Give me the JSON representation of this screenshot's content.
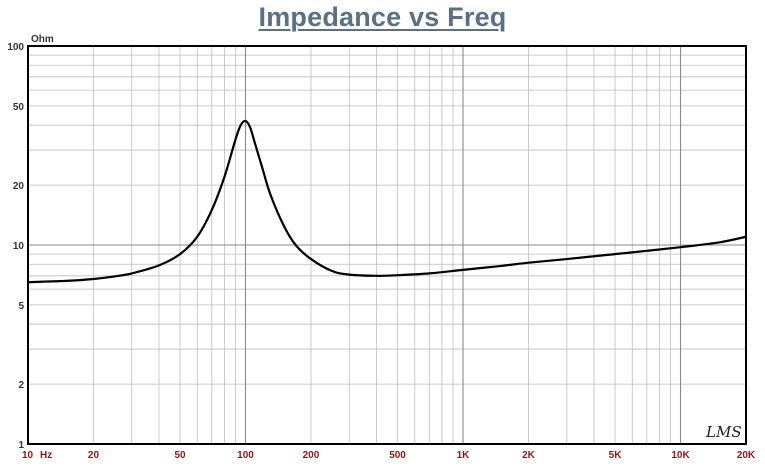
{
  "chart_data": {
    "type": "line",
    "title": "Impedance vs Freq",
    "y_unit": "Ohm",
    "x_unit": "Hz",
    "x_scale": "log",
    "y_scale": "log",
    "xlim": [
      10,
      20000
    ],
    "ylim": [
      1,
      100
    ],
    "grid": true,
    "y_ticks": [
      {
        "value": 100,
        "label": "100"
      },
      {
        "value": 50,
        "label": "50"
      },
      {
        "value": 20,
        "label": "20"
      },
      {
        "value": 10,
        "label": "10"
      },
      {
        "value": 5,
        "label": "5"
      },
      {
        "value": 2,
        "label": "2"
      },
      {
        "value": 1,
        "label": "1"
      }
    ],
    "x_ticks": [
      {
        "value": 10,
        "label": "10"
      },
      {
        "value": 20,
        "label": "20"
      },
      {
        "value": 50,
        "label": "50"
      },
      {
        "value": 100,
        "label": "100"
      },
      {
        "value": 200,
        "label": "200"
      },
      {
        "value": 500,
        "label": "500"
      },
      {
        "value": 1000,
        "label": "1K"
      },
      {
        "value": 2000,
        "label": "2K"
      },
      {
        "value": 5000,
        "label": "5K"
      },
      {
        "value": 10000,
        "label": "10K"
      },
      {
        "value": 20000,
        "label": "20K"
      }
    ],
    "series": [
      {
        "color": "#000000",
        "points": [
          [
            10,
            6.5
          ],
          [
            12,
            6.55
          ],
          [
            15,
            6.6
          ],
          [
            20,
            6.75
          ],
          [
            25,
            6.95
          ],
          [
            30,
            7.2
          ],
          [
            40,
            7.9
          ],
          [
            50,
            9.0
          ],
          [
            60,
            11.0
          ],
          [
            70,
            15.0
          ],
          [
            80,
            22.0
          ],
          [
            90,
            34.0
          ],
          [
            95,
            40.0
          ],
          [
            100,
            42.0
          ],
          [
            105,
            39.0
          ],
          [
            110,
            33.0
          ],
          [
            120,
            24.0
          ],
          [
            130,
            18.0
          ],
          [
            150,
            12.5
          ],
          [
            170,
            10.0
          ],
          [
            200,
            8.5
          ],
          [
            250,
            7.4
          ],
          [
            300,
            7.1
          ],
          [
            400,
            7.0
          ],
          [
            500,
            7.05
          ],
          [
            700,
            7.2
          ],
          [
            1000,
            7.5
          ],
          [
            1500,
            7.85
          ],
          [
            2000,
            8.15
          ],
          [
            3000,
            8.5
          ],
          [
            5000,
            9.0
          ],
          [
            7000,
            9.35
          ],
          [
            10000,
            9.75
          ],
          [
            15000,
            10.3
          ],
          [
            20000,
            11.0
          ]
        ]
      }
    ]
  },
  "logo": {
    "text": "LMS"
  }
}
